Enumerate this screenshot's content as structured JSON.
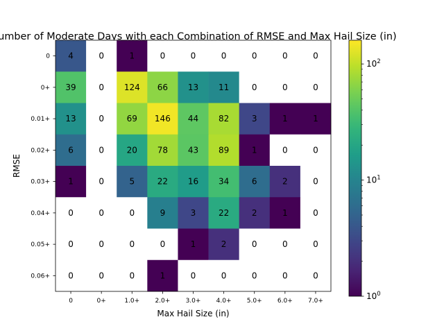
{
  "chart_data": {
    "type": "heatmap",
    "title": "Number of Moderate Days with each Combination of RMSE and Max Hail Size (in)",
    "xlabel": "Max Hail Size (in)",
    "ylabel": "RMSE",
    "x_categories": [
      "0",
      "0+",
      "1.0+",
      "2.0+",
      "3.0+",
      "4.0+",
      "5.0+",
      "6.0+",
      "7.0+"
    ],
    "y_categories": [
      "0",
      "0+",
      "0.01+",
      "0.02+",
      "0.03+",
      "0.04+",
      "0.05+",
      "0.06+"
    ],
    "values": [
      [
        4,
        0,
        1,
        0,
        0,
        0,
        0,
        0,
        0
      ],
      [
        39,
        0,
        124,
        66,
        13,
        11,
        0,
        0,
        0
      ],
      [
        13,
        0,
        69,
        146,
        44,
        82,
        3,
        1,
        1
      ],
      [
        6,
        0,
        20,
        78,
        43,
        89,
        1,
        0,
        0
      ],
      [
        1,
        0,
        5,
        22,
        16,
        34,
        6,
        2,
        0
      ],
      [
        0,
        0,
        0,
        9,
        3,
        22,
        2,
        1,
        0
      ],
      [
        0,
        0,
        0,
        0,
        1,
        2,
        0,
        0,
        0
      ],
      [
        0,
        0,
        0,
        1,
        0,
        0,
        0,
        0,
        0
      ]
    ],
    "color_scale": "log",
    "colormap": "viridis",
    "zero_color": "#ffffff",
    "colorbar": {
      "range": [
        1,
        160
      ],
      "ticks": [
        {
          "value": 1,
          "base": "10",
          "exp": "0"
        },
        {
          "value": 10,
          "base": "10",
          "exp": "1"
        },
        {
          "value": 100,
          "base": "10",
          "exp": "2"
        }
      ]
    },
    "grid": false
  }
}
